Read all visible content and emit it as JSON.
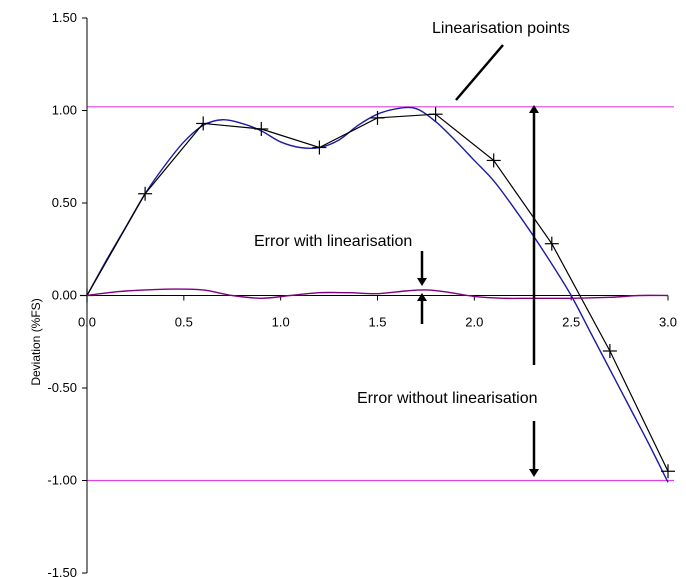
{
  "chart_data": {
    "type": "line",
    "title": "",
    "xlabel": "",
    "ylabel": "Deviation (%FS)",
    "xlim": [
      0.0,
      3.0
    ],
    "ylim": [
      -1.5,
      1.5
    ],
    "x_ticks": [
      "0.0",
      "0.5",
      "1.0",
      "1.5",
      "2.0",
      "2.5",
      "3.0"
    ],
    "y_ticks": [
      "1.50",
      "1.00",
      "0.50",
      "0.00",
      "-0.50",
      "-1.00",
      "-1.50"
    ],
    "grid": false,
    "legend": "none",
    "series": [
      {
        "type": "smooth-line",
        "color": "#1c1ca0",
        "x": [
          0.0,
          0.1,
          0.2,
          0.3,
          0.4,
          0.5,
          0.6,
          0.7,
          0.8,
          0.9,
          1.0,
          1.1,
          1.2,
          1.3,
          1.4,
          1.5,
          1.6,
          1.7,
          1.8,
          1.9,
          2.0,
          2.1,
          2.2,
          2.3,
          2.4,
          2.5,
          2.6,
          2.7,
          2.8,
          2.9,
          3.0
        ],
        "y": [
          0.0,
          0.19,
          0.37,
          0.55,
          0.7,
          0.83,
          0.92,
          0.95,
          0.93,
          0.89,
          0.83,
          0.8,
          0.8,
          0.84,
          0.92,
          0.98,
          1.01,
          1.01,
          0.94,
          0.84,
          0.73,
          0.62,
          0.48,
          0.33,
          0.17,
          0.0,
          -0.2,
          -0.4,
          -0.6,
          -0.8,
          -1.01
        ]
      },
      {
        "type": "line-with-markers",
        "color": "#000000",
        "marker": "+",
        "x": [
          0.0,
          0.3,
          0.6,
          0.9,
          1.2,
          1.5,
          1.8,
          2.1,
          2.4,
          2.7,
          3.0
        ],
        "y": [
          0.0,
          0.55,
          0.93,
          0.9,
          0.8,
          0.96,
          0.98,
          0.73,
          0.28,
          -0.3,
          -0.95
        ]
      },
      {
        "type": "smooth-line",
        "color": "#800080",
        "x": [
          0.0,
          0.15,
          0.3,
          0.45,
          0.6,
          0.75,
          0.9,
          1.05,
          1.2,
          1.35,
          1.5,
          1.65,
          1.75,
          1.85,
          2.0,
          2.15,
          2.3,
          2.5,
          2.7,
          2.85,
          3.0
        ],
        "y": [
          0.0,
          0.02,
          0.03,
          0.035,
          0.03,
          0.0,
          -0.015,
          0.0,
          0.015,
          0.015,
          0.01,
          0.025,
          0.03,
          0.02,
          -0.005,
          -0.015,
          -0.015,
          -0.015,
          -0.01,
          0.0,
          0.0
        ]
      }
    ],
    "reference_lines": [
      {
        "y": 1.02,
        "color": "#e040e0"
      },
      {
        "y": -1.0,
        "color": "#e040e0"
      }
    ],
    "annotations": [
      {
        "text": "Linearisation points"
      },
      {
        "text": "Error with linearisation"
      },
      {
        "text": "Error without linearisation"
      }
    ]
  }
}
